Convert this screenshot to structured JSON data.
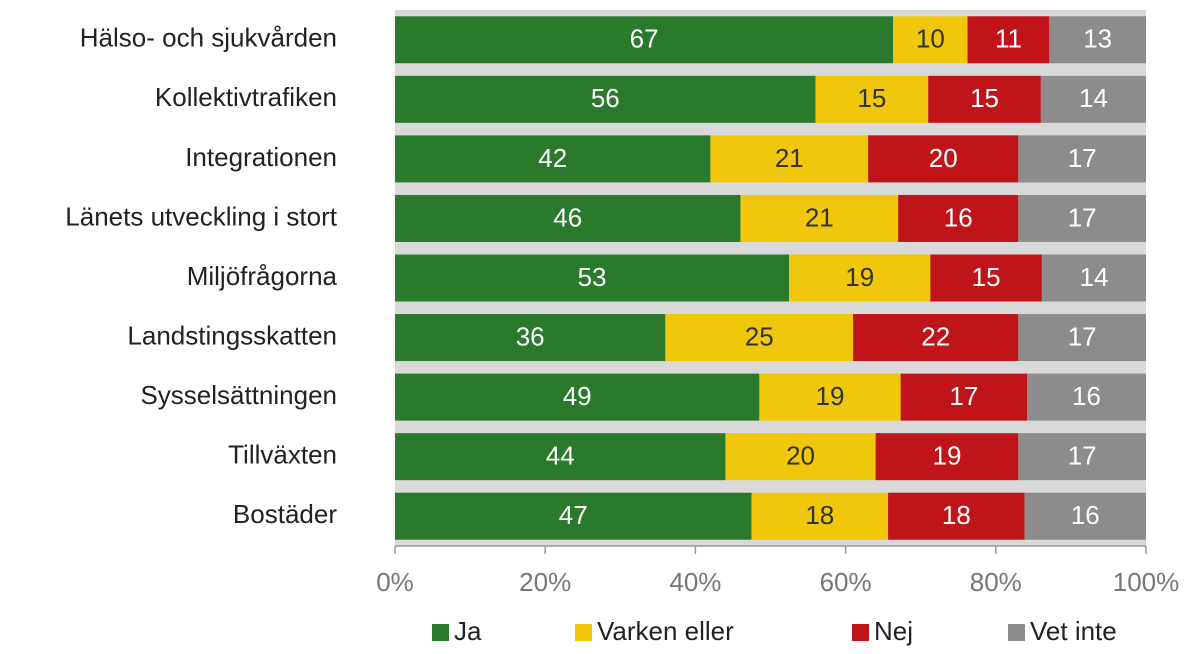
{
  "chart_data": {
    "type": "bar",
    "orientation": "horizontal",
    "stacking": "percent",
    "categories": [
      "Hälso- och sjukvården",
      "Kollektivtrafiken",
      "Integrationen",
      "Länets utveckling i stort",
      "Miljöfrågorna",
      "Landstingsskatten",
      "Sysselsättningen",
      "Tillväxten",
      "Bostäder"
    ],
    "series": [
      {
        "name": "Ja",
        "color": "#2a7a2e",
        "values": [
          67,
          56,
          42,
          46,
          53,
          36,
          49,
          44,
          47
        ]
      },
      {
        "name": "Varken eller",
        "color": "#f0c70a",
        "values": [
          10,
          15,
          21,
          21,
          19,
          25,
          19,
          20,
          18
        ]
      },
      {
        "name": "Nej",
        "color": "#c0141b",
        "values": [
          11,
          15,
          20,
          16,
          15,
          22,
          17,
          19,
          18
        ]
      },
      {
        "name": "Vet inte",
        "color": "#8c8c8c",
        "values": [
          13,
          14,
          17,
          17,
          14,
          17,
          16,
          17,
          16
        ]
      }
    ],
    "xlim": [
      0,
      100
    ],
    "xticks": [
      {
        "value": 0,
        "label": "0%"
      },
      {
        "value": 20,
        "label": "20%"
      },
      {
        "value": 40,
        "label": "40%"
      },
      {
        "value": 60,
        "label": "60%"
      },
      {
        "value": 80,
        "label": "80%"
      },
      {
        "value": 100,
        "label": "100%"
      }
    ],
    "legend": "bottom"
  }
}
